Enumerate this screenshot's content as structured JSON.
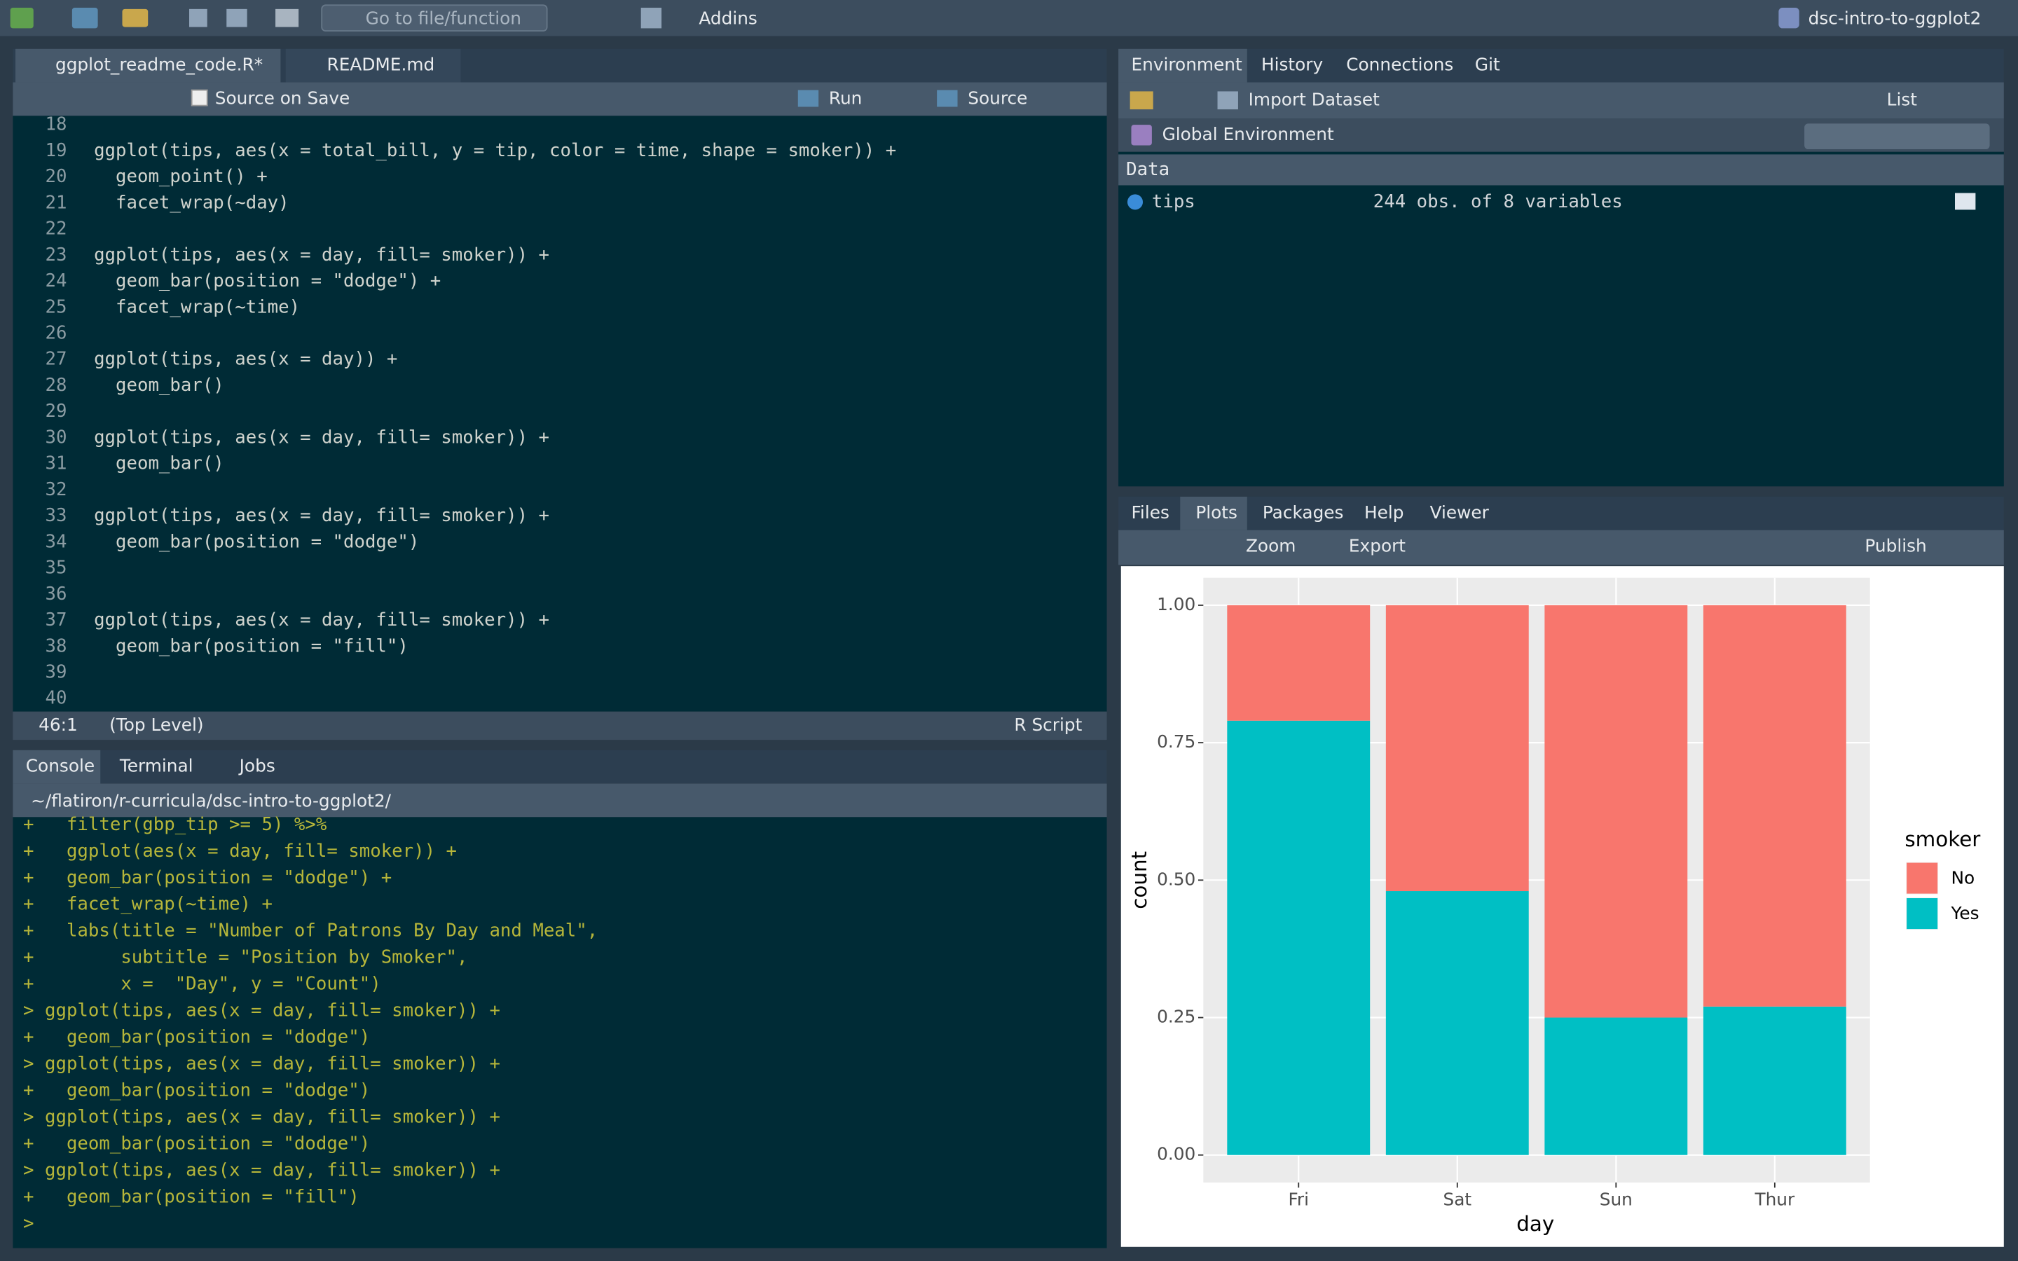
{
  "toolbar": {
    "goto": "Go to file/function",
    "addins": "Addins",
    "project": "dsc-intro-to-ggplot2"
  },
  "editor": {
    "tabs": [
      "ggplot_readme_code.R*",
      "README.md"
    ],
    "toolbar": {
      "source_on_save": "Source on Save",
      "run": "Run",
      "source": "Source"
    },
    "lines": [
      {
        "n": 18
      },
      {
        "n": 19,
        "code": "ggplot(tips, aes(x = total_bill, y = tip, color = time, shape = smoker)) +"
      },
      {
        "n": 20,
        "code": "  geom_point() +"
      },
      {
        "n": 21,
        "code": "  facet_wrap(~day)"
      },
      {
        "n": 22
      },
      {
        "n": 23,
        "code": "ggplot(tips, aes(x = day, fill= smoker)) +"
      },
      {
        "n": 24,
        "code": "  geom_bar(position = \"dodge\") +"
      },
      {
        "n": 25,
        "code": "  facet_wrap(~time)"
      },
      {
        "n": 26
      },
      {
        "n": 27,
        "code": "ggplot(tips, aes(x = day)) +"
      },
      {
        "n": 28,
        "code": "  geom_bar()"
      },
      {
        "n": 29
      },
      {
        "n": 30,
        "code": "ggplot(tips, aes(x = day, fill= smoker)) +"
      },
      {
        "n": 31,
        "code": "  geom_bar()"
      },
      {
        "n": 32
      },
      {
        "n": 33,
        "code": "ggplot(tips, aes(x = day, fill= smoker)) +"
      },
      {
        "n": 34,
        "code": "  geom_bar(position = \"dodge\")"
      },
      {
        "n": 35
      },
      {
        "n": 36
      },
      {
        "n": 37,
        "code": "ggplot(tips, aes(x = day, fill= smoker)) +"
      },
      {
        "n": 38,
        "code": "  geom_bar(position = \"fill\")"
      },
      {
        "n": 39
      },
      {
        "n": 40
      }
    ],
    "status": {
      "position": "46:1",
      "scope": "(Top Level)",
      "filetype": "R Script"
    }
  },
  "console": {
    "tabs": [
      "Console",
      "Terminal",
      "Jobs"
    ],
    "path": "~/flatiron/r-curricula/dsc-intro-to-ggplot2/",
    "lines": [
      "+   filter(gbp_tip >= 5) %>%",
      "+   ggplot(aes(x = day, fill= smoker)) +",
      "+   geom_bar(position = \"dodge\") +",
      "+   facet_wrap(~time) +",
      "+   labs(title = \"Number of Patrons By Day and Meal\",",
      "+        subtitle = \"Position by Smoker\",",
      "+        x =  \"Day\", y = \"Count\")",
      "> ggplot(tips, aes(x = day, fill= smoker)) +",
      "+   geom_bar(position = \"dodge\")",
      "> ggplot(tips, aes(x = day, fill= smoker)) +",
      "+   geom_bar(position = \"dodge\")",
      "> ggplot(tips, aes(x = day, fill= smoker)) +",
      "+   geom_bar(position = \"dodge\")",
      "> ggplot(tips, aes(x = day, fill= smoker)) +",
      "+   geom_bar(position = \"fill\")",
      ">"
    ]
  },
  "environment": {
    "tabs": [
      "Environment",
      "History",
      "Connections",
      "Git"
    ],
    "import": "Import Dataset",
    "view": "List",
    "scope": "Global Environment",
    "section": "Data",
    "objects": [
      {
        "name": "tips",
        "summary": "244 obs. of 8 variables"
      }
    ]
  },
  "plots": {
    "tabs": [
      "Files",
      "Plots",
      "Packages",
      "Help",
      "Viewer"
    ],
    "zoom": "Zoom",
    "export": "Export",
    "publish": "Publish"
  },
  "chart_data": {
    "type": "bar",
    "stacked": true,
    "x_label": "day",
    "y_label": "count",
    "legend_title": "smoker",
    "legend_position": "right",
    "grid": true,
    "categories": [
      "Fri",
      "Sat",
      "Sun",
      "Thur"
    ],
    "series": [
      {
        "name": "No",
        "color": "#F8766D",
        "values": [
          0.21,
          0.52,
          0.75,
          0.73
        ]
      },
      {
        "name": "Yes",
        "color": "#00BFC4",
        "values": [
          0.79,
          0.48,
          0.25,
          0.27
        ]
      }
    ],
    "ylim": [
      -0.05,
      1.05
    ],
    "yticks": [
      {
        "value": 0,
        "label": "0.00"
      },
      {
        "value": 0.25,
        "label": "0.25"
      },
      {
        "value": 0.5,
        "label": "0.50"
      },
      {
        "value": 0.75,
        "label": "0.75"
      },
      {
        "value": 1,
        "label": "1.00"
      }
    ]
  }
}
